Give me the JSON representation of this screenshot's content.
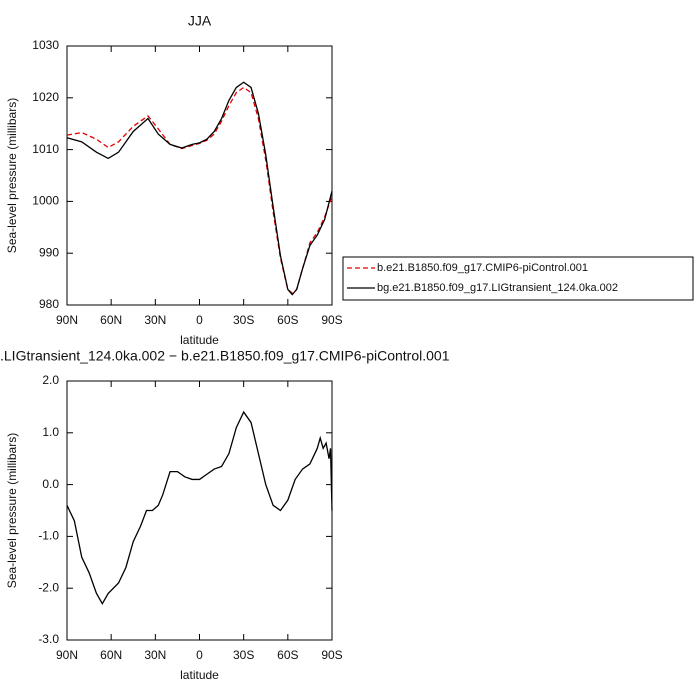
{
  "chart_data": [
    {
      "type": "line",
      "title": "JJA",
      "x_label": "latitude",
      "y_label": "Sea-level pressure (millibars)",
      "xlim": [
        90,
        -90
      ],
      "xticks": [
        {
          "value": 90,
          "label": "90N"
        },
        {
          "value": 60,
          "label": "60N"
        },
        {
          "value": 30,
          "label": "30N"
        },
        0,
        {
          "value": -30,
          "label": "30S"
        },
        {
          "value": -60,
          "label": "60S"
        },
        {
          "value": -90,
          "label": "90S"
        }
      ],
      "ylim": [
        980,
        1030
      ],
      "yticks": [
        980,
        990,
        1000,
        1010,
        1020,
        1030
      ],
      "legend": "right",
      "x": [
        90,
        80,
        70,
        62,
        55,
        45,
        35,
        28,
        20,
        12,
        5,
        0,
        -5,
        -10,
        -15,
        -20,
        -25,
        -30,
        -35,
        -40,
        -45,
        -50,
        -55,
        -60,
        -63,
        -66,
        -70,
        -75,
        -80,
        -85,
        -90
      ],
      "series": [
        {
          "name": "b.e21.B1850.f09_g17.CMIP6-piControl.001",
          "color": "#e00000",
          "dashed": true,
          "values": [
            1012.8,
            1013.3,
            1012,
            1010.4,
            1011.5,
            1014.5,
            1016.5,
            1014,
            1011,
            1010.2,
            1010.8,
            1011.2,
            1011.8,
            1013,
            1015.5,
            1018.5,
            1021,
            1022,
            1021,
            1016,
            1008,
            998,
            989,
            983,
            982.3,
            983,
            987,
            992,
            994,
            997,
            1001
          ]
        },
        {
          "name": "bg.e21.B1850.f09_g17.LIGtransient_124.0ka.002",
          "color": "#000000",
          "dashed": false,
          "values": [
            1012.3,
            1011.5,
            1009.5,
            1008.3,
            1009.5,
            1013.5,
            1016,
            1013,
            1011,
            1010.3,
            1011,
            1011.3,
            1012,
            1013.5,
            1016,
            1019.5,
            1022,
            1023,
            1022,
            1017,
            1009,
            999,
            989.5,
            983,
            982,
            983,
            987,
            991.5,
            993.5,
            996.5,
            1002
          ]
        }
      ]
    },
    {
      "type": "line",
      "title": ".LIGtransient_124.0ka.002 − b.e21.B1850.f09_g17.CMIP6-piControl.001",
      "x_label": "latitude",
      "y_label": "Sea-level pressure (millibars)",
      "xlim": [
        90,
        -90
      ],
      "xticks": [
        {
          "value": 90,
          "label": "90N"
        },
        {
          "value": 60,
          "label": "60N"
        },
        {
          "value": 30,
          "label": "30N"
        },
        0,
        {
          "value": -30,
          "label": "30S"
        },
        {
          "value": -60,
          "label": "60S"
        },
        {
          "value": -90,
          "label": "90S"
        }
      ],
      "ylim": [
        -3,
        2
      ],
      "yticks": [
        {
          "value": -3,
          "label": "-3.0"
        },
        {
          "value": -2,
          "label": "-2.0"
        },
        {
          "value": -1,
          "label": "-1.0"
        },
        {
          "value": 0,
          "label": "0.0"
        },
        {
          "value": 1,
          "label": "1.0"
        },
        {
          "value": 2,
          "label": "2.0"
        }
      ],
      "x": [
        90,
        85,
        80,
        75,
        70,
        66,
        62,
        55,
        50,
        45,
        40,
        36,
        32,
        28,
        25,
        20,
        15,
        10,
        5,
        0,
        -5,
        -10,
        -15,
        -20,
        -25,
        -30,
        -35,
        -40,
        -45,
        -50,
        -55,
        -60,
        -65,
        -70,
        -75,
        -80,
        -82,
        -84,
        -86,
        -88,
        -89,
        -90
      ],
      "series": [
        {
          "color": "#000000",
          "dashed": false,
          "values": [
            -0.4,
            -0.7,
            -1.4,
            -1.7,
            -2.1,
            -2.3,
            -2.1,
            -1.9,
            -1.6,
            -1.1,
            -0.8,
            -0.5,
            -0.5,
            -0.4,
            -0.2,
            0.25,
            0.25,
            0.15,
            0.1,
            0.1,
            0.2,
            0.3,
            0.35,
            0.6,
            1.1,
            1.4,
            1.2,
            0.6,
            0,
            -0.4,
            -0.5,
            -0.3,
            0.1,
            0.3,
            0.4,
            0.7,
            0.9,
            0.7,
            0.8,
            0.5,
            0.7,
            -0.5
          ]
        }
      ]
    }
  ]
}
